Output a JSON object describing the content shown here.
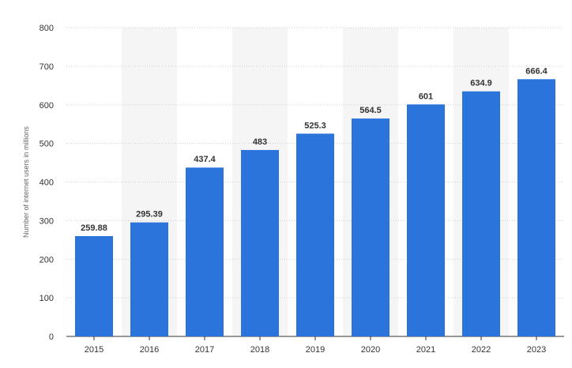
{
  "chart_data": {
    "type": "bar",
    "title": "",
    "xlabel": "",
    "ylabel": "Number of internet users in millions",
    "categories": [
      "2015",
      "2016",
      "2017",
      "2018",
      "2019",
      "2020",
      "2021",
      "2022",
      "2023"
    ],
    "values": [
      259.88,
      295.39,
      437.4,
      483,
      525.3,
      564.5,
      601,
      634.9,
      666.4
    ],
    "value_labels": [
      "259.88",
      "295.39",
      "437.4",
      "483",
      "525.3",
      "564.5",
      "601",
      "634.9",
      "666.4"
    ],
    "ylim": [
      0,
      800
    ],
    "yticks": [
      0,
      100,
      200,
      300,
      400,
      500,
      600,
      700,
      800
    ],
    "grid": true,
    "bar_color": "#2a74db",
    "alt_band_color": "#f5f5f5",
    "grid_color": "#cfcfcf"
  }
}
